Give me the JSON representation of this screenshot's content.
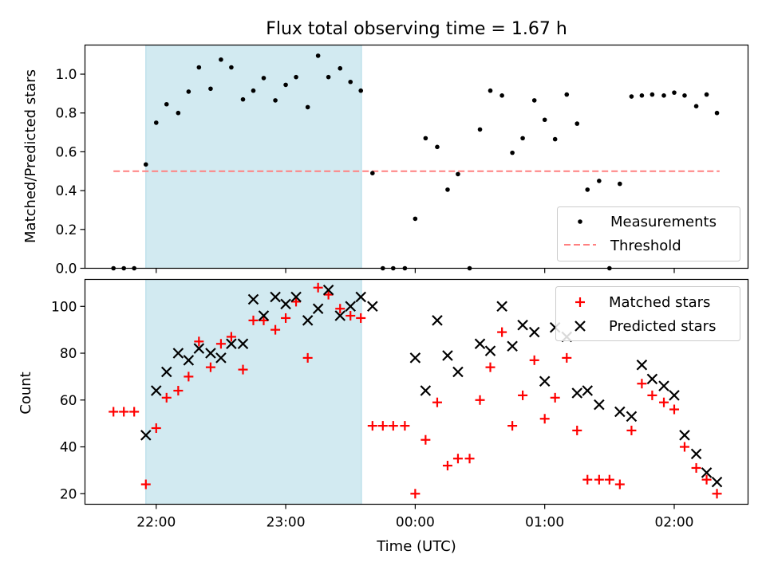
{
  "chart_data": {
    "type": "scatter",
    "title": "Flux total observing time = 1.67 h",
    "xlabel": "Time (UTC)",
    "x_ticks": [
      "22:00",
      "23:00",
      "00:00",
      "01:00",
      "02:00"
    ],
    "x_tick_hours": [
      22,
      23,
      24,
      25,
      26
    ],
    "xlim": [
      21.45,
      26.57
    ],
    "shaded_span": {
      "start": 21.92,
      "end": 23.585,
      "color": "#add8e6"
    },
    "top": {
      "ylabel": "Matched/Predicted stars",
      "ylim": [
        0,
        1.15
      ],
      "yticks": [
        0.0,
        0.2,
        0.4,
        0.6,
        0.8,
        1.0
      ],
      "ytick_labels": [
        "0.0",
        "0.2",
        "0.4",
        "0.6",
        "0.8",
        "1.0"
      ],
      "legend_position": "lower-right",
      "threshold": {
        "name": "Threshold",
        "value": 0.5,
        "x": [
          21.67,
          26.35
        ],
        "color": "#ff8080"
      },
      "measurements": {
        "name": "Measurements",
        "color": "#000000",
        "x": [
          21.67,
          21.75,
          21.83,
          21.92,
          22.0,
          22.08,
          22.17,
          22.25,
          22.33,
          22.42,
          22.5,
          22.58,
          22.67,
          22.75,
          22.83,
          22.92,
          23.0,
          23.08,
          23.17,
          23.25,
          23.33,
          23.42,
          23.5,
          23.58,
          23.67,
          23.75,
          23.83,
          23.92,
          24.0,
          24.08,
          24.17,
          24.25,
          24.33,
          24.42,
          24.5,
          24.58,
          24.67,
          24.75,
          24.83,
          24.92,
          25.0,
          25.08,
          25.17,
          25.25,
          25.33,
          25.42,
          25.5,
          25.58,
          25.67,
          25.75,
          25.83,
          25.92,
          26.0,
          26.08,
          26.17,
          26.25,
          26.33
        ],
        "y": [
          0.0,
          0.0,
          0.0,
          0.535,
          0.75,
          0.845,
          0.8,
          0.91,
          1.035,
          0.925,
          1.075,
          1.035,
          0.87,
          0.915,
          0.98,
          0.865,
          0.945,
          0.985,
          0.83,
          1.095,
          0.985,
          1.03,
          0.96,
          0.915,
          0.49,
          0.0,
          0.0,
          0.0,
          0.255,
          0.67,
          0.625,
          0.405,
          0.485,
          0.0,
          0.715,
          0.915,
          0.89,
          0.595,
          0.67,
          0.865,
          0.765,
          0.665,
          0.895,
          0.745,
          0.405,
          0.45,
          0.0,
          0.435,
          0.885,
          0.89,
          0.895,
          0.89,
          0.905,
          0.89,
          0.835,
          0.895,
          0.8
        ]
      }
    },
    "bottom": {
      "ylabel": "Count",
      "ylim": [
        15.5,
        111.5
      ],
      "yticks": [
        20,
        40,
        60,
        80,
        100
      ],
      "ytick_labels": [
        "20",
        "40",
        "60",
        "80",
        "100"
      ],
      "legend_position": "upper-right",
      "series": [
        {
          "name": "Matched stars",
          "marker": "plus",
          "color": "#ff0000",
          "x": [
            21.67,
            21.75,
            21.83,
            21.92,
            22.0,
            22.08,
            22.17,
            22.25,
            22.33,
            22.42,
            22.5,
            22.58,
            22.67,
            22.75,
            22.83,
            22.92,
            23.0,
            23.08,
            23.17,
            23.25,
            23.33,
            23.42,
            23.5,
            23.58,
            23.67,
            23.75,
            23.83,
            23.92,
            24.0,
            24.08,
            24.17,
            24.25,
            24.33,
            24.42,
            24.5,
            24.58,
            24.67,
            24.75,
            24.83,
            24.92,
            25.0,
            25.08,
            25.17,
            25.25,
            25.33,
            25.42,
            25.5,
            25.58,
            25.67,
            25.75,
            25.83,
            25.92,
            26.0,
            26.08,
            26.17,
            26.25,
            26.33
          ],
          "y": [
            55,
            55,
            55,
            24,
            48,
            61,
            64,
            70,
            85,
            74,
            84,
            87,
            73,
            94,
            94,
            90,
            95,
            102,
            78,
            108,
            105,
            99,
            96,
            95,
            49,
            49,
            49,
            49,
            20,
            43,
            59,
            32,
            35,
            35,
            60,
            74,
            89,
            49,
            62,
            77,
            52,
            61,
            78,
            47,
            26,
            26,
            26,
            24,
            47,
            67,
            62,
            59,
            56,
            40,
            31,
            26,
            20
          ]
        },
        {
          "name": "Predicted stars",
          "marker": "x",
          "color": "#000000",
          "x": [
            21.92,
            22.0,
            22.08,
            22.17,
            22.25,
            22.33,
            22.42,
            22.5,
            22.58,
            22.67,
            22.75,
            22.83,
            22.92,
            23.0,
            23.08,
            23.17,
            23.25,
            23.33,
            23.42,
            23.5,
            23.58,
            23.67,
            24.0,
            24.08,
            24.17,
            24.25,
            24.33,
            24.5,
            24.58,
            24.67,
            24.75,
            24.83,
            24.92,
            25.0,
            25.08,
            25.17,
            25.25,
            25.33,
            25.42,
            25.58,
            25.67,
            25.75,
            25.83,
            25.92,
            26.0,
            26.08,
            26.17,
            26.25,
            26.33
          ],
          "y": [
            45,
            64,
            72,
            80,
            77,
            82,
            80,
            78,
            84,
            84,
            103,
            96,
            104,
            101,
            104,
            94,
            99,
            107,
            96,
            100,
            104,
            100,
            78,
            64,
            94,
            79,
            72,
            84,
            81,
            100,
            83,
            92,
            89,
            68,
            91,
            87,
            63,
            64,
            58,
            55,
            53,
            75,
            69,
            66,
            62,
            45,
            37,
            29,
            25
          ]
        }
      ]
    }
  }
}
